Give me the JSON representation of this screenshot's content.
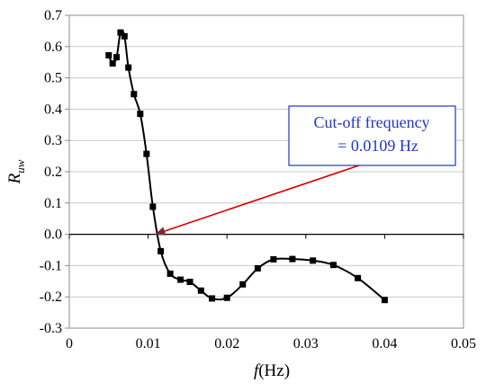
{
  "chart_data": {
    "type": "scatter",
    "xlabel": "f (Hz)",
    "xlabel_italic_part": "f",
    "xlabel_unit_part": "(Hz)",
    "ylabel": "Ruw",
    "ylabel_main": "R",
    "ylabel_sub": "uw",
    "xlim": [
      0,
      0.05
    ],
    "ylim": [
      -0.3,
      0.7
    ],
    "xticks": [
      "0",
      "0.01",
      "0.02",
      "0.03",
      "0.04",
      "0.05"
    ],
    "xtick_values": [
      0,
      0.01,
      0.02,
      0.03,
      0.04,
      0.05
    ],
    "yticks": [
      "-0.3",
      "-0.2",
      "-0.1",
      "0.0",
      "0.1",
      "0.2",
      "0.3",
      "0.4",
      "0.5",
      "0.6",
      "0.7"
    ],
    "ytick_values": [
      -0.3,
      -0.2,
      -0.1,
      0.0,
      0.1,
      0.2,
      0.3,
      0.4,
      0.5,
      0.6,
      0.7
    ],
    "grid": "horizontal",
    "series": [
      {
        "marker": "square",
        "line": "smooth",
        "color": "#000000",
        "x": [
          0.005,
          0.0055,
          0.006,
          0.0065,
          0.007,
          0.0075,
          0.0082,
          0.009,
          0.0098,
          0.0106,
          0.0116,
          0.0128,
          0.0141,
          0.0153,
          0.0167,
          0.0181,
          0.02,
          0.022,
          0.0239,
          0.0259,
          0.0283,
          0.0309,
          0.0335,
          0.0366,
          0.04
        ],
        "y": [
          0.572,
          0.546,
          0.566,
          0.645,
          0.633,
          0.533,
          0.448,
          0.385,
          0.257,
          0.088,
          -0.054,
          -0.126,
          -0.145,
          -0.152,
          -0.18,
          -0.205,
          -0.203,
          -0.16,
          -0.109,
          -0.08,
          -0.079,
          -0.084,
          -0.098,
          -0.14,
          -0.21
        ]
      }
    ],
    "annotation": {
      "text_line1": "Cut-off frequency",
      "text_line2": "= 0.0109 Hz",
      "box_border_color": "#1f36c9",
      "text_color": "#1f36c9",
      "arrow_color": "#d40000",
      "arrow_head_color": "#7a2e2e",
      "arrow_target": {
        "x": 0.0109,
        "y": 0.0
      },
      "arrow_start": {
        "x": 0.0385,
        "y": 0.235
      }
    }
  }
}
